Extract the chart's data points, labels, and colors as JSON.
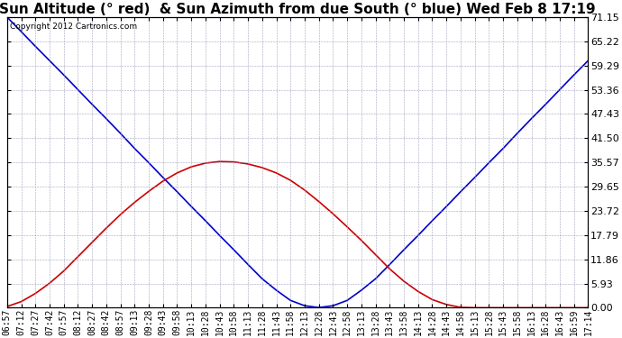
{
  "title": "Sun Altitude (° red)  & Sun Azimuth from due South (° blue) Wed Feb 8 17:19",
  "copyright": "Copyright 2012 Cartronics.com",
  "yticks": [
    0.0,
    5.93,
    11.86,
    17.79,
    23.72,
    29.65,
    35.57,
    41.5,
    47.43,
    53.36,
    59.29,
    65.22,
    71.15
  ],
  "ymin": 0.0,
  "ymax": 71.15,
  "xtick_labels": [
    "06:57",
    "07:12",
    "07:27",
    "07:42",
    "07:57",
    "08:12",
    "08:27",
    "08:42",
    "08:57",
    "09:13",
    "09:28",
    "09:43",
    "09:58",
    "10:13",
    "10:28",
    "10:43",
    "10:58",
    "11:13",
    "11:28",
    "11:43",
    "11:58",
    "12:13",
    "12:28",
    "12:43",
    "12:58",
    "13:13",
    "13:28",
    "13:43",
    "13:58",
    "14:13",
    "14:28",
    "14:43",
    "14:58",
    "15:13",
    "15:28",
    "15:43",
    "15:58",
    "16:13",
    "16:28",
    "16:43",
    "16:59",
    "17:14"
  ],
  "blue_line": [
    71.15,
    67.6,
    64.0,
    60.5,
    57.0,
    53.4,
    49.8,
    46.3,
    42.7,
    39.0,
    35.5,
    31.9,
    28.4,
    24.8,
    21.3,
    17.7,
    14.2,
    10.6,
    7.1,
    4.3,
    1.8,
    0.5,
    0.05,
    0.5,
    1.8,
    4.3,
    7.1,
    10.6,
    14.2,
    17.7,
    21.3,
    24.8,
    28.4,
    31.9,
    35.5,
    39.0,
    42.7,
    46.3,
    49.8,
    53.4,
    57.0,
    60.5
  ],
  "red_line": [
    0.3,
    1.5,
    3.5,
    6.0,
    9.0,
    12.5,
    16.0,
    19.5,
    22.8,
    25.8,
    28.5,
    31.0,
    33.0,
    34.5,
    35.4,
    35.8,
    35.7,
    35.2,
    34.3,
    33.0,
    31.2,
    28.8,
    26.0,
    23.0,
    19.8,
    16.5,
    13.0,
    9.5,
    6.5,
    4.0,
    2.0,
    0.8,
    0.1,
    0.0,
    0.0,
    0.0,
    0.0,
    0.0,
    0.0,
    0.0,
    0.0,
    0.0
  ],
  "blue_color": "#0000CC",
  "red_color": "#CC0000",
  "background_color": "#FFFFFF",
  "grid_color": "#9999BB",
  "title_fontsize": 11,
  "copyright_fontsize": 6.5,
  "tick_fontsize": 7,
  "ytick_fontsize": 8
}
